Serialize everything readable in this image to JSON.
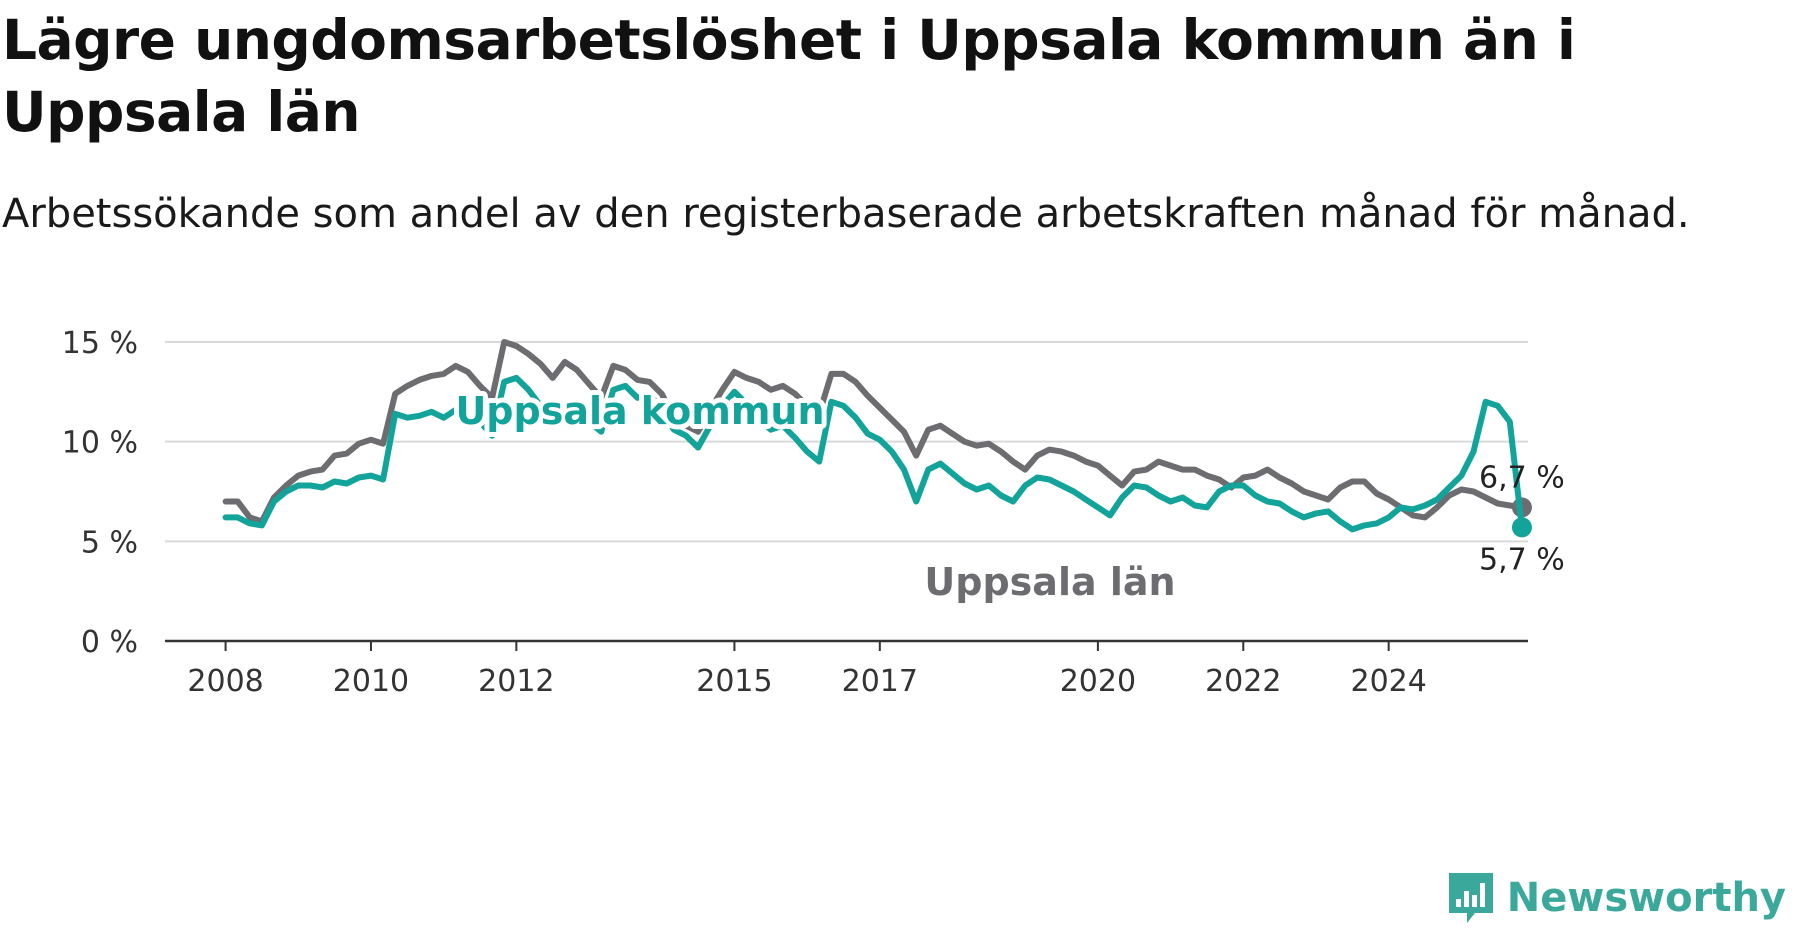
{
  "title": "Lägre ungdomsarbetslöshet i Uppsala kommun än i Uppsala län",
  "subtitle": "Arbetssökande som andel av den registerbaserade arbetskraften månad för månad.",
  "brand": {
    "name": "Newsworthy",
    "color": "#3aa89a",
    "icon": "bar-chart-speech-icon"
  },
  "chart_data": {
    "type": "line",
    "title": "Lägre ungdomsarbetslöshet i Uppsala kommun än i Uppsala län",
    "subtitle": "Arbetssökande som andel av den registerbaserade arbetskraften månad för månad.",
    "xlabel": "",
    "ylabel": "",
    "x_ticks": [
      "2008",
      "2010",
      "2012",
      "2015",
      "2017",
      "2020",
      "2022",
      "2024"
    ],
    "y_ticks": [
      "0 %",
      "5 %",
      "10 %",
      "15 %"
    ],
    "ylim": [
      0,
      15
    ],
    "xlim": [
      "2007-03",
      "2025-12"
    ],
    "grid": true,
    "legend": "inline labels",
    "series": [
      {
        "name": "Uppsala län",
        "color": "#6d6c70",
        "end_label": "6,7 %",
        "points": [
          [
            "2008-01",
            7.0
          ],
          [
            "2008-03",
            7.0
          ],
          [
            "2008-05",
            6.2
          ],
          [
            "2008-07",
            6.0
          ],
          [
            "2008-09",
            7.2
          ],
          [
            "2008-11",
            7.8
          ],
          [
            "2009-01",
            8.3
          ],
          [
            "2009-03",
            8.5
          ],
          [
            "2009-05",
            8.6
          ],
          [
            "2009-07",
            9.3
          ],
          [
            "2009-09",
            9.4
          ],
          [
            "2009-11",
            9.9
          ],
          [
            "2010-01",
            10.1
          ],
          [
            "2010-03",
            9.9
          ],
          [
            "2010-05",
            12.4
          ],
          [
            "2010-07",
            12.8
          ],
          [
            "2010-09",
            13.1
          ],
          [
            "2010-11",
            13.3
          ],
          [
            "2011-01",
            13.4
          ],
          [
            "2011-03",
            13.8
          ],
          [
            "2011-05",
            13.5
          ],
          [
            "2011-07",
            12.8
          ],
          [
            "2011-09",
            12.2
          ],
          [
            "2011-11",
            15.0
          ],
          [
            "2012-01",
            14.8
          ],
          [
            "2012-03",
            14.4
          ],
          [
            "2012-05",
            13.9
          ],
          [
            "2012-07",
            13.2
          ],
          [
            "2012-09",
            14.0
          ],
          [
            "2012-11",
            13.6
          ],
          [
            "2013-01",
            12.9
          ],
          [
            "2013-03",
            12.2
          ],
          [
            "2013-05",
            13.8
          ],
          [
            "2013-07",
            13.6
          ],
          [
            "2013-09",
            13.1
          ],
          [
            "2013-11",
            13.0
          ],
          [
            "2014-01",
            12.4
          ],
          [
            "2014-03",
            11.2
          ],
          [
            "2014-05",
            10.8
          ],
          [
            "2014-07",
            10.5
          ],
          [
            "2014-09",
            11.6
          ],
          [
            "2014-11",
            12.6
          ],
          [
            "2015-01",
            13.5
          ],
          [
            "2015-03",
            13.2
          ],
          [
            "2015-05",
            13.0
          ],
          [
            "2015-07",
            12.6
          ],
          [
            "2015-09",
            12.8
          ],
          [
            "2015-11",
            12.4
          ],
          [
            "2016-01",
            11.8
          ],
          [
            "2016-03",
            11.4
          ],
          [
            "2016-05",
            13.4
          ],
          [
            "2016-07",
            13.4
          ],
          [
            "2016-09",
            13.0
          ],
          [
            "2016-11",
            12.3
          ],
          [
            "2017-01",
            11.7
          ],
          [
            "2017-03",
            11.1
          ],
          [
            "2017-05",
            10.5
          ],
          [
            "2017-07",
            9.3
          ],
          [
            "2017-09",
            10.6
          ],
          [
            "2017-11",
            10.8
          ],
          [
            "2018-01",
            10.4
          ],
          [
            "2018-03",
            10.0
          ],
          [
            "2018-05",
            9.8
          ],
          [
            "2018-07",
            9.9
          ],
          [
            "2018-09",
            9.5
          ],
          [
            "2018-11",
            9.0
          ],
          [
            "2019-01",
            8.6
          ],
          [
            "2019-03",
            9.3
          ],
          [
            "2019-05",
            9.6
          ],
          [
            "2019-07",
            9.5
          ],
          [
            "2019-09",
            9.3
          ],
          [
            "2019-11",
            9.0
          ],
          [
            "2020-01",
            8.8
          ],
          [
            "2020-03",
            8.3
          ],
          [
            "2020-05",
            7.8
          ],
          [
            "2020-07",
            8.5
          ],
          [
            "2020-09",
            8.6
          ],
          [
            "2020-11",
            9.0
          ],
          [
            "2021-01",
            8.8
          ],
          [
            "2021-03",
            8.6
          ],
          [
            "2021-05",
            8.6
          ],
          [
            "2021-07",
            8.3
          ],
          [
            "2021-09",
            8.1
          ],
          [
            "2021-11",
            7.7
          ],
          [
            "2022-01",
            8.2
          ],
          [
            "2022-03",
            8.3
          ],
          [
            "2022-05",
            8.6
          ],
          [
            "2022-07",
            8.2
          ],
          [
            "2022-09",
            7.9
          ],
          [
            "2022-11",
            7.5
          ],
          [
            "2023-01",
            7.3
          ],
          [
            "2023-03",
            7.1
          ],
          [
            "2023-05",
            7.7
          ],
          [
            "2023-07",
            8.0
          ],
          [
            "2023-09",
            8.0
          ],
          [
            "2023-11",
            7.4
          ],
          [
            "2024-01",
            7.1
          ],
          [
            "2024-03",
            6.7
          ],
          [
            "2024-05",
            6.3
          ],
          [
            "2024-07",
            6.2
          ],
          [
            "2024-09",
            6.7
          ],
          [
            "2024-11",
            7.3
          ],
          [
            "2025-01",
            7.6
          ],
          [
            "2025-03",
            7.5
          ],
          [
            "2025-05",
            7.2
          ],
          [
            "2025-07",
            6.9
          ],
          [
            "2025-09",
            6.8
          ],
          [
            "2025-11",
            6.7
          ]
        ]
      },
      {
        "name": "Uppsala kommun",
        "color": "#12a39a",
        "end_label": "5,7 %",
        "points": [
          [
            "2008-01",
            6.2
          ],
          [
            "2008-03",
            6.2
          ],
          [
            "2008-05",
            5.9
          ],
          [
            "2008-07",
            5.8
          ],
          [
            "2008-09",
            7.0
          ],
          [
            "2008-11",
            7.5
          ],
          [
            "2009-01",
            7.8
          ],
          [
            "2009-03",
            7.8
          ],
          [
            "2009-05",
            7.7
          ],
          [
            "2009-07",
            8.0
          ],
          [
            "2009-09",
            7.9
          ],
          [
            "2009-11",
            8.2
          ],
          [
            "2010-01",
            8.3
          ],
          [
            "2010-03",
            8.1
          ],
          [
            "2010-05",
            11.4
          ],
          [
            "2010-07",
            11.2
          ],
          [
            "2010-09",
            11.3
          ],
          [
            "2010-11",
            11.5
          ],
          [
            "2011-01",
            11.2
          ],
          [
            "2011-03",
            11.6
          ],
          [
            "2011-05",
            11.5
          ],
          [
            "2011-07",
            11.0
          ],
          [
            "2011-09",
            10.3
          ],
          [
            "2011-11",
            13.0
          ],
          [
            "2012-01",
            13.2
          ],
          [
            "2012-03",
            12.6
          ],
          [
            "2012-05",
            11.8
          ],
          [
            "2012-07",
            11.5
          ],
          [
            "2012-09",
            11.9
          ],
          [
            "2012-11",
            11.5
          ],
          [
            "2013-01",
            11.0
          ],
          [
            "2013-03",
            10.5
          ],
          [
            "2013-05",
            12.6
          ],
          [
            "2013-07",
            12.8
          ],
          [
            "2013-09",
            12.2
          ],
          [
            "2013-11",
            12.4
          ],
          [
            "2014-01",
            11.6
          ],
          [
            "2014-03",
            10.6
          ],
          [
            "2014-05",
            10.3
          ],
          [
            "2014-07",
            9.7
          ],
          [
            "2014-09",
            10.8
          ],
          [
            "2014-11",
            11.8
          ],
          [
            "2015-01",
            12.5
          ],
          [
            "2015-03",
            11.9
          ],
          [
            "2015-05",
            11.2
          ],
          [
            "2015-07",
            10.6
          ],
          [
            "2015-09",
            10.8
          ],
          [
            "2015-11",
            10.2
          ],
          [
            "2016-01",
            9.5
          ],
          [
            "2016-03",
            9.0
          ],
          [
            "2016-05",
            12.0
          ],
          [
            "2016-07",
            11.8
          ],
          [
            "2016-09",
            11.2
          ],
          [
            "2016-11",
            10.4
          ],
          [
            "2017-01",
            10.1
          ],
          [
            "2017-03",
            9.5
          ],
          [
            "2017-05",
            8.6
          ],
          [
            "2017-07",
            7.0
          ],
          [
            "2017-09",
            8.6
          ],
          [
            "2017-11",
            8.9
          ],
          [
            "2018-01",
            8.4
          ],
          [
            "2018-03",
            7.9
          ],
          [
            "2018-05",
            7.6
          ],
          [
            "2018-07",
            7.8
          ],
          [
            "2018-09",
            7.3
          ],
          [
            "2018-11",
            7.0
          ],
          [
            "2019-01",
            7.8
          ],
          [
            "2019-03",
            8.2
          ],
          [
            "2019-05",
            8.1
          ],
          [
            "2019-07",
            7.8
          ],
          [
            "2019-09",
            7.5
          ],
          [
            "2019-11",
            7.1
          ],
          [
            "2020-01",
            6.7
          ],
          [
            "2020-03",
            6.3
          ],
          [
            "2020-05",
            7.2
          ],
          [
            "2020-07",
            7.8
          ],
          [
            "2020-09",
            7.7
          ],
          [
            "2020-11",
            7.3
          ],
          [
            "2021-01",
            7.0
          ],
          [
            "2021-03",
            7.2
          ],
          [
            "2021-05",
            6.8
          ],
          [
            "2021-07",
            6.7
          ],
          [
            "2021-09",
            7.5
          ],
          [
            "2021-11",
            7.8
          ],
          [
            "2022-01",
            7.8
          ],
          [
            "2022-03",
            7.3
          ],
          [
            "2022-05",
            7.0
          ],
          [
            "2022-07",
            6.9
          ],
          [
            "2022-09",
            6.5
          ],
          [
            "2022-11",
            6.2
          ],
          [
            "2023-01",
            6.4
          ],
          [
            "2023-03",
            6.5
          ],
          [
            "2023-05",
            6.0
          ],
          [
            "2023-07",
            5.6
          ],
          [
            "2023-09",
            5.8
          ],
          [
            "2023-11",
            5.9
          ],
          [
            "2024-01",
            6.2
          ],
          [
            "2024-03",
            6.7
          ],
          [
            "2024-05",
            6.6
          ],
          [
            "2024-07",
            6.8
          ],
          [
            "2024-09",
            7.1
          ],
          [
            "2024-11",
            7.7
          ],
          [
            "2025-01",
            8.3
          ],
          [
            "2025-03",
            9.5
          ],
          [
            "2025-05",
            12.0
          ],
          [
            "2025-07",
            11.8
          ],
          [
            "2025-09",
            11.0
          ],
          [
            "2025-11",
            5.7
          ]
        ]
      }
    ]
  }
}
